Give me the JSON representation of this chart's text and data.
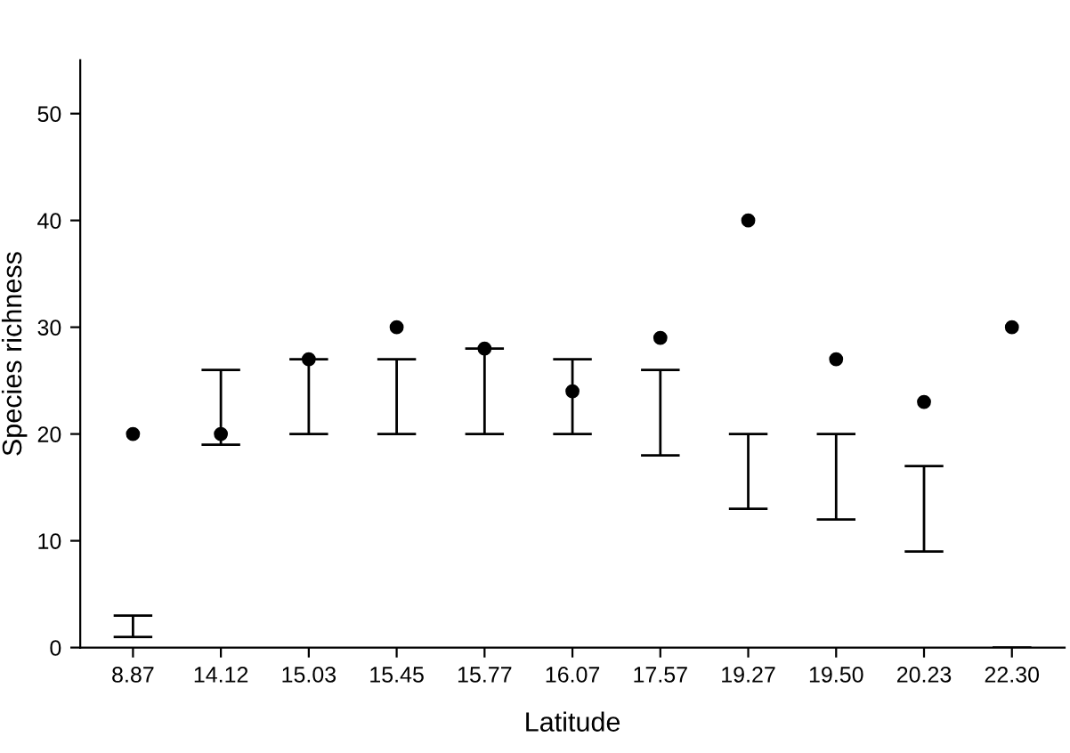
{
  "chart_data": {
    "type": "scatter",
    "xlabel": "Latitude",
    "ylabel": "Species richness",
    "categories": [
      "8.87",
      "14.12",
      "15.03",
      "15.45",
      "15.77",
      "16.07",
      "17.57",
      "19.27",
      "19.50",
      "20.23",
      "22.30"
    ],
    "series": [
      {
        "color": "#000000",
        "marker": "circle",
        "values": [
          20,
          20,
          27,
          30,
          28,
          24,
          29,
          40,
          27,
          23,
          30
        ],
        "errors": [
          [
            1,
            3
          ],
          [
            19,
            26
          ],
          [
            20,
            27
          ],
          [
            20,
            27
          ],
          [
            20,
            28
          ],
          [
            20,
            27
          ],
          [
            18,
            26
          ],
          [
            13,
            20
          ],
          [
            12,
            20
          ],
          [
            9,
            17
          ],
          [
            0,
            0
          ]
        ]
      }
    ],
    "ylim": [
      0,
      55
    ],
    "yticks": [
      0,
      10,
      20,
      30,
      40,
      50
    ],
    "grid": false,
    "legend": false
  }
}
